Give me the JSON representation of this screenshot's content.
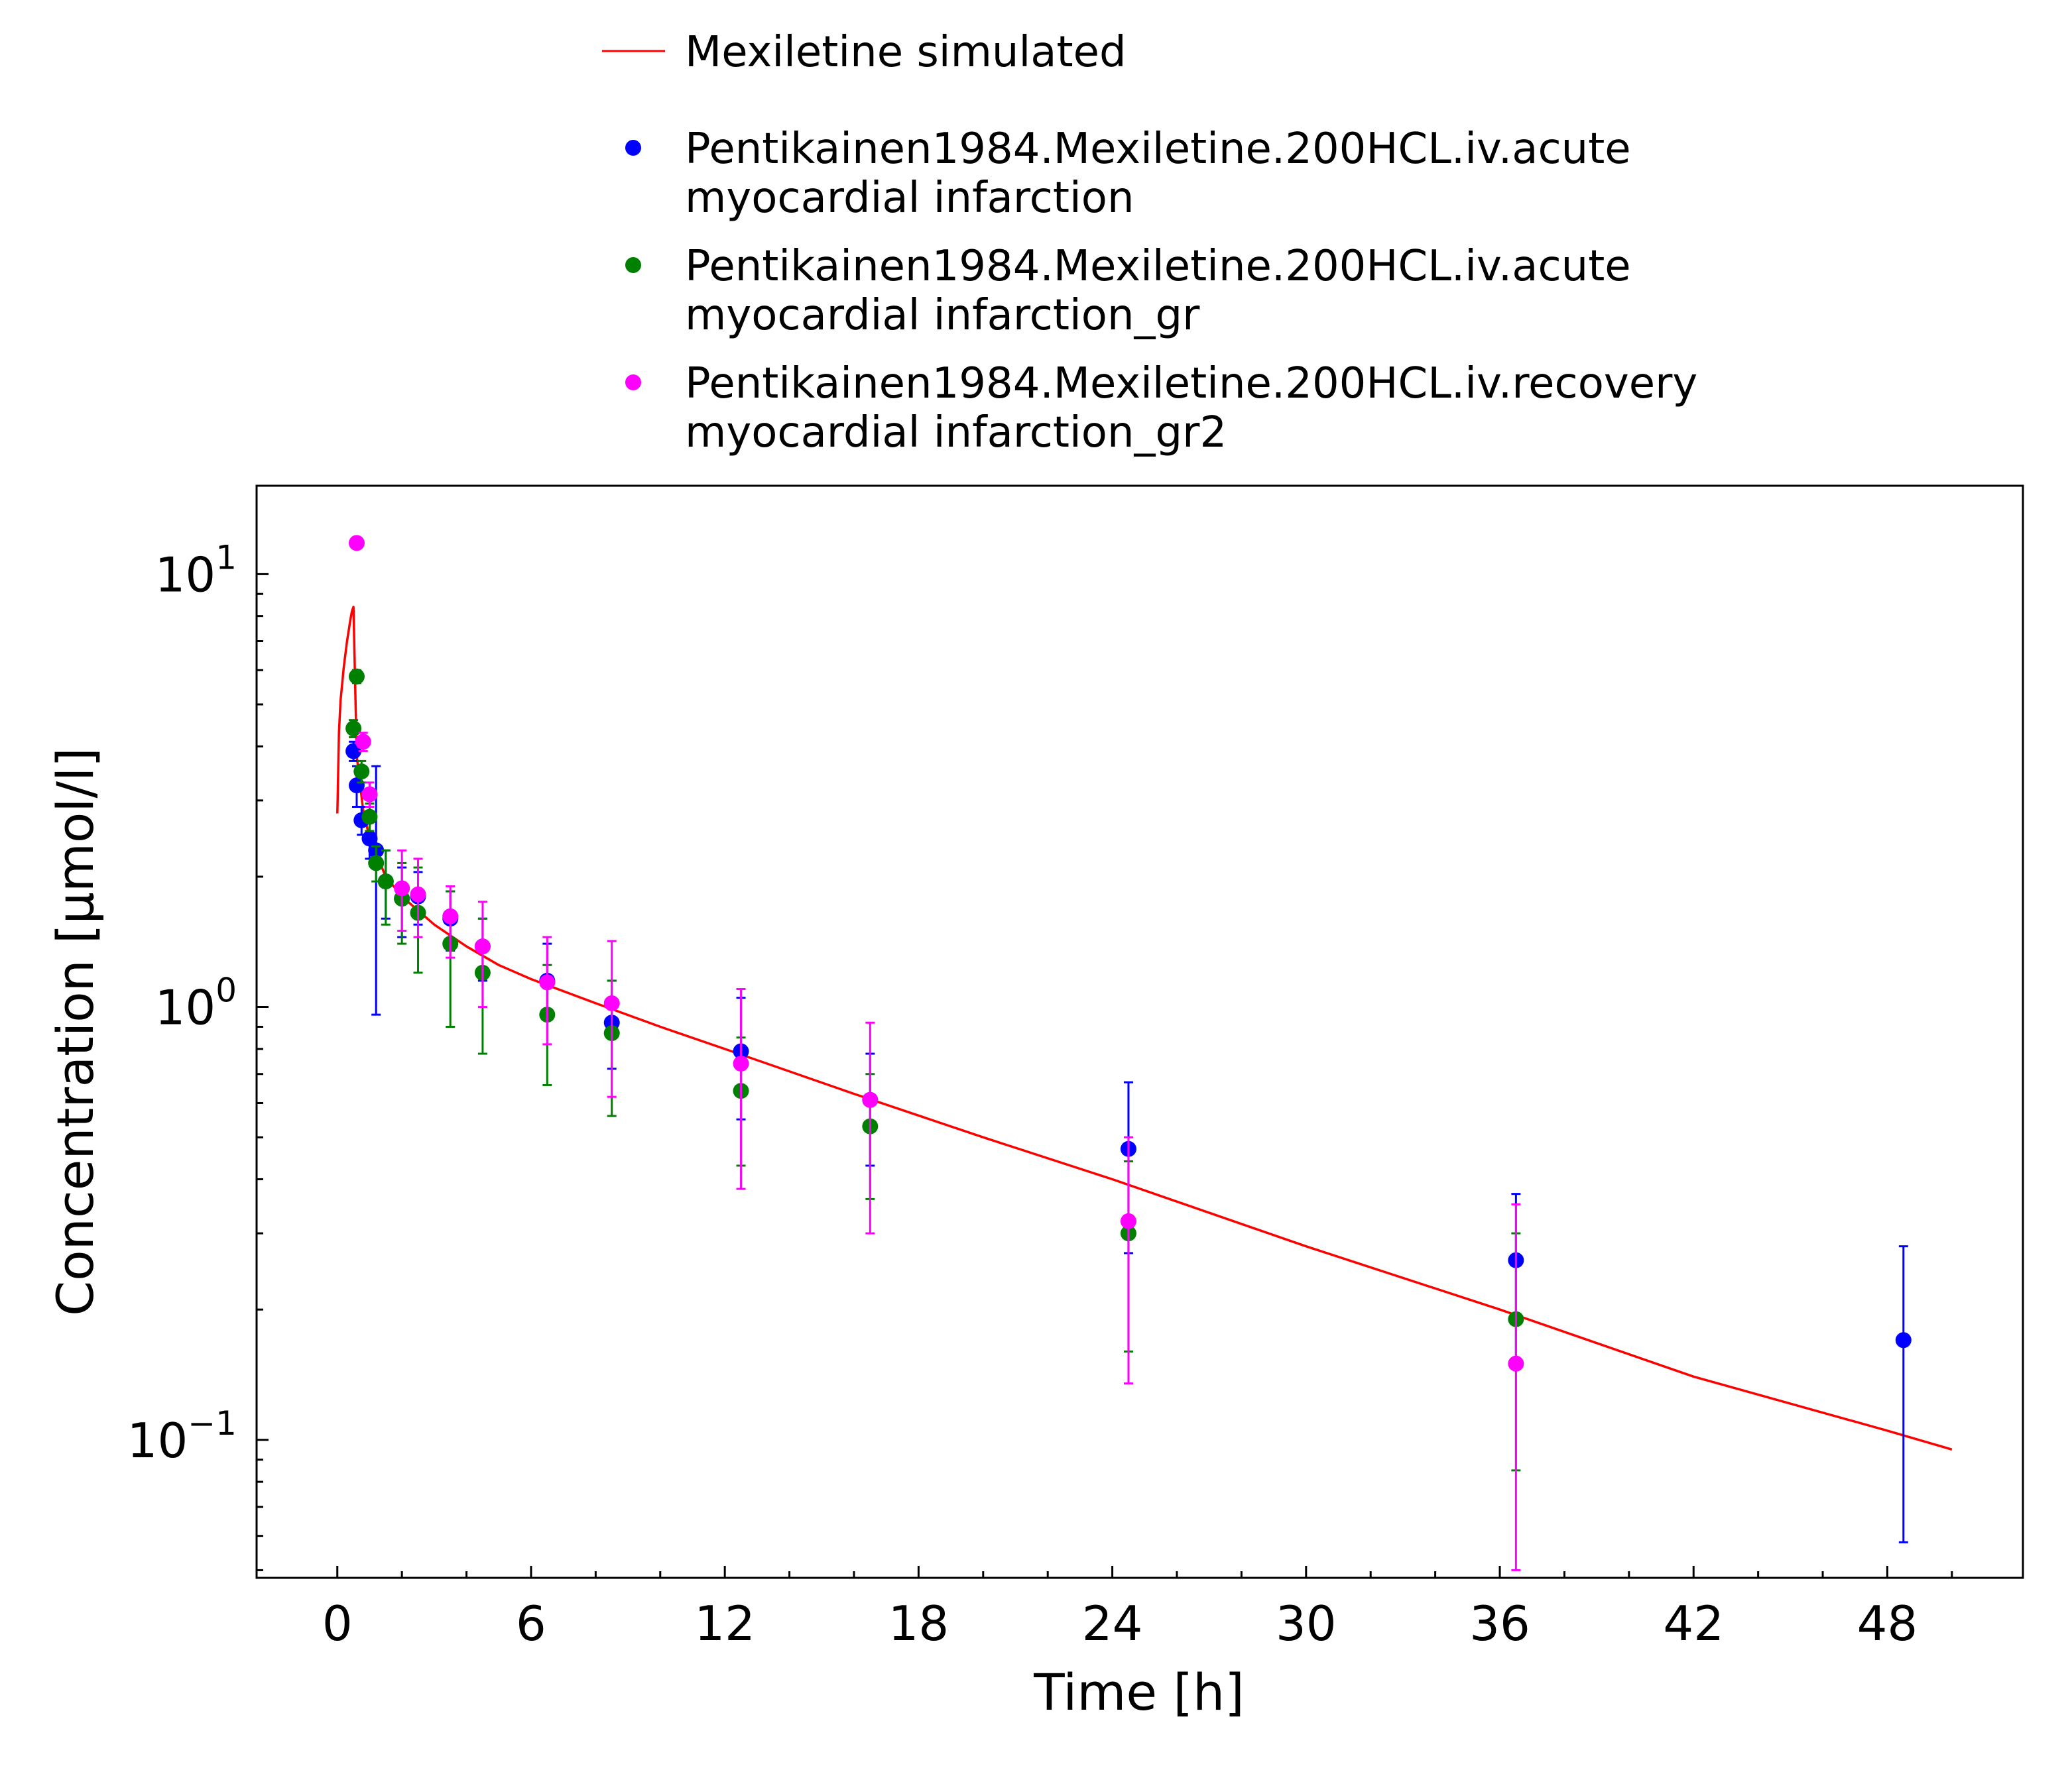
{
  "chart_data": {
    "type": "scatter",
    "xlabel": "Time [h]",
    "ylabel": "Concentration [µmol/l]",
    "x_ticks": [
      "0",
      "6",
      "12",
      "18",
      "24",
      "30",
      "36",
      "42",
      "48"
    ],
    "x_tick_values": [
      0,
      6,
      12,
      18,
      24,
      30,
      36,
      42,
      48
    ],
    "xlim": [
      -2.5,
      52.2
    ],
    "y_scale": "log",
    "ylim": [
      0.048,
      16
    ],
    "y_ticks": [
      {
        "value": 10,
        "base": "10",
        "exp": "1"
      },
      {
        "value": 1,
        "base": "10",
        "exp": "0"
      },
      {
        "value": 0.1,
        "base": "10",
        "exp": "−1"
      }
    ],
    "grid": false,
    "legend_position": "top",
    "legend": [
      {
        "id": "sim",
        "marker": "line",
        "color": "#ff0000",
        "lines": [
          "Mexiletine simulated"
        ]
      },
      {
        "id": "acute",
        "marker": "dot",
        "color": "#0000ff",
        "lines": [
          "Pentikainen1984.Mexiletine.200HCL.iv.acute",
          "myocardial infarction"
        ]
      },
      {
        "id": "gr",
        "marker": "dot",
        "color": "#008000",
        "lines": [
          "Pentikainen1984.Mexiletine.200HCL.iv.acute",
          "myocardial infarction_gr"
        ]
      },
      {
        "id": "gr2",
        "marker": "dot",
        "color": "#ff00ff",
        "lines": [
          "Pentikainen1984.Mexiletine.200HCL.iv.recovery",
          "myocardial infarction_gr2"
        ]
      }
    ],
    "series": [
      {
        "name": "Mexiletine simulated",
        "kind": "line",
        "color": "#ff0000",
        "x": [
          0.0,
          0.05,
          0.1,
          0.2,
          0.3,
          0.4,
          0.45,
          0.5,
          0.6,
          0.8,
          1.0,
          1.5,
          2.0,
          3.0,
          4.0,
          5.0,
          6.0,
          8.0,
          10.0,
          12.0,
          16.0,
          20.0,
          24.0,
          30.0,
          36.0,
          42.0,
          48.0,
          50.0
        ],
        "y": [
          2.8,
          4.3,
          5.1,
          6.1,
          7.0,
          7.8,
          8.2,
          8.4,
          3.8,
          2.85,
          2.45,
          2.0,
          1.8,
          1.55,
          1.38,
          1.25,
          1.16,
          1.02,
          0.9,
          0.8,
          0.63,
          0.5,
          0.4,
          0.28,
          0.2,
          0.14,
          0.105,
          0.095
        ]
      },
      {
        "name": "Pentikainen1984.Mexiletine.200HCL.iv.acute myocardial infarction",
        "kind": "points",
        "color": "#0000ff",
        "points": [
          {
            "x": 0.5,
            "y": 3.9,
            "lo": 3.7,
            "hi": 4.1
          },
          {
            "x": 0.6,
            "y": 3.25,
            "lo": 2.9,
            "hi": 3.6
          },
          {
            "x": 0.75,
            "y": 2.7,
            "lo": 2.5,
            "hi": 2.9
          },
          {
            "x": 1.0,
            "y": 2.45,
            "lo": 2.2,
            "hi": 2.7
          },
          {
            "x": 1.2,
            "y": 2.3,
            "lo": 0.96,
            "hi": 3.6
          },
          {
            "x": 1.5,
            "y": 1.95,
            "lo": 1.6,
            "hi": 2.3
          },
          {
            "x": 2.0,
            "y": 1.78,
            "lo": 1.45,
            "hi": 2.1
          },
          {
            "x": 2.5,
            "y": 1.8,
            "lo": 1.55,
            "hi": 2.05
          },
          {
            "x": 3.5,
            "y": 1.6,
            "lo": 1.35,
            "hi": 1.85
          },
          {
            "x": 4.5,
            "y": 1.38,
            "lo": 1.15,
            "hi": 1.6
          },
          {
            "x": 6.5,
            "y": 1.15,
            "lo": 0.95,
            "hi": 1.4
          },
          {
            "x": 8.5,
            "y": 0.92,
            "lo": 0.72,
            "hi": 1.15
          },
          {
            "x": 12.5,
            "y": 0.79,
            "lo": 0.55,
            "hi": 1.05
          },
          {
            "x": 16.5,
            "y": 0.61,
            "lo": 0.43,
            "hi": 0.78
          },
          {
            "x": 24.5,
            "y": 0.47,
            "lo": 0.27,
            "hi": 0.67
          },
          {
            "x": 36.5,
            "y": 0.26,
            "lo": 0.15,
            "hi": 0.37
          },
          {
            "x": 48.5,
            "y": 0.17,
            "lo": 0.058,
            "hi": 0.28
          }
        ]
      },
      {
        "name": "Pentikainen1984.Mexiletine.200HCL.iv.acute myocardial infarction_gr",
        "kind": "points",
        "color": "#008000",
        "points": [
          {
            "x": 0.5,
            "y": 4.4,
            "lo": 4.2,
            "hi": 4.6
          },
          {
            "x": 0.6,
            "y": 5.8,
            "lo": 5.6,
            "hi": 6.0
          },
          {
            "x": 0.75,
            "y": 3.5,
            "lo": 3.3,
            "hi": 3.7
          },
          {
            "x": 1.0,
            "y": 2.75,
            "lo": 2.55,
            "hi": 2.95
          },
          {
            "x": 1.2,
            "y": 2.15,
            "lo": 1.95,
            "hi": 2.35
          },
          {
            "x": 1.5,
            "y": 1.95,
            "lo": 1.55,
            "hi": 2.3
          },
          {
            "x": 2.0,
            "y": 1.78,
            "lo": 1.4,
            "hi": 2.15
          },
          {
            "x": 2.5,
            "y": 1.65,
            "lo": 1.2,
            "hi": 2.1
          },
          {
            "x": 3.5,
            "y": 1.4,
            "lo": 0.9,
            "hi": 1.85
          },
          {
            "x": 4.5,
            "y": 1.2,
            "lo": 0.78,
            "hi": 1.6
          },
          {
            "x": 6.5,
            "y": 0.96,
            "lo": 0.66,
            "hi": 1.25
          },
          {
            "x": 8.5,
            "y": 0.87,
            "lo": 0.56,
            "hi": 1.15
          },
          {
            "x": 12.5,
            "y": 0.64,
            "lo": 0.43,
            "hi": 0.85
          },
          {
            "x": 16.5,
            "y": 0.53,
            "lo": 0.36,
            "hi": 0.7
          },
          {
            "x": 24.5,
            "y": 0.3,
            "lo": 0.16,
            "hi": 0.44
          },
          {
            "x": 36.5,
            "y": 0.19,
            "lo": 0.085,
            "hi": 0.3
          }
        ]
      },
      {
        "name": "Pentikainen1984.Mexiletine.200HCL.iv.recovery myocardial infarction_gr2",
        "kind": "points",
        "color": "#ff00ff",
        "points": [
          {
            "x": 0.6,
            "y": 11.8,
            "lo": 11.5,
            "hi": 12.1
          },
          {
            "x": 0.8,
            "y": 4.1,
            "lo": 3.9,
            "hi": 4.3
          },
          {
            "x": 1.0,
            "y": 3.1,
            "lo": 2.9,
            "hi": 3.3
          },
          {
            "x": 2.0,
            "y": 1.88,
            "lo": 1.5,
            "hi": 2.3
          },
          {
            "x": 2.5,
            "y": 1.82,
            "lo": 1.45,
            "hi": 2.2
          },
          {
            "x": 3.5,
            "y": 1.62,
            "lo": 1.3,
            "hi": 1.9
          },
          {
            "x": 4.5,
            "y": 1.38,
            "lo": 1.0,
            "hi": 1.75
          },
          {
            "x": 6.5,
            "y": 1.14,
            "lo": 0.82,
            "hi": 1.45
          },
          {
            "x": 8.5,
            "y": 1.02,
            "lo": 0.62,
            "hi": 1.42
          },
          {
            "x": 12.5,
            "y": 0.74,
            "lo": 0.38,
            "hi": 1.1
          },
          {
            "x": 16.5,
            "y": 0.61,
            "lo": 0.3,
            "hi": 0.92
          },
          {
            "x": 24.5,
            "y": 0.32,
            "lo": 0.135,
            "hi": 0.5
          },
          {
            "x": 36.5,
            "y": 0.15,
            "lo": 0.05,
            "hi": 0.35
          }
        ]
      }
    ]
  }
}
